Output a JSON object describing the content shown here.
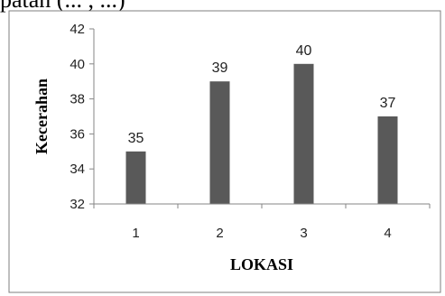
{
  "caption_fragment": "patan (... , ...)",
  "chart_data": {
    "type": "bar",
    "categories": [
      "1",
      "2",
      "3",
      "4"
    ],
    "values": [
      35,
      39,
      40,
      37
    ],
    "data_labels": [
      "35",
      "39",
      "40",
      "37"
    ],
    "title": "",
    "xlabel": "LOKASI",
    "ylabel": "Kecerahan",
    "ylim": [
      32,
      42
    ],
    "yticks": [
      32,
      34,
      36,
      38,
      40,
      42
    ],
    "grid": false,
    "legend": "none",
    "bar_color": "#595959",
    "axis_color": "#868686",
    "frame_color": "#7f7f7f"
  }
}
